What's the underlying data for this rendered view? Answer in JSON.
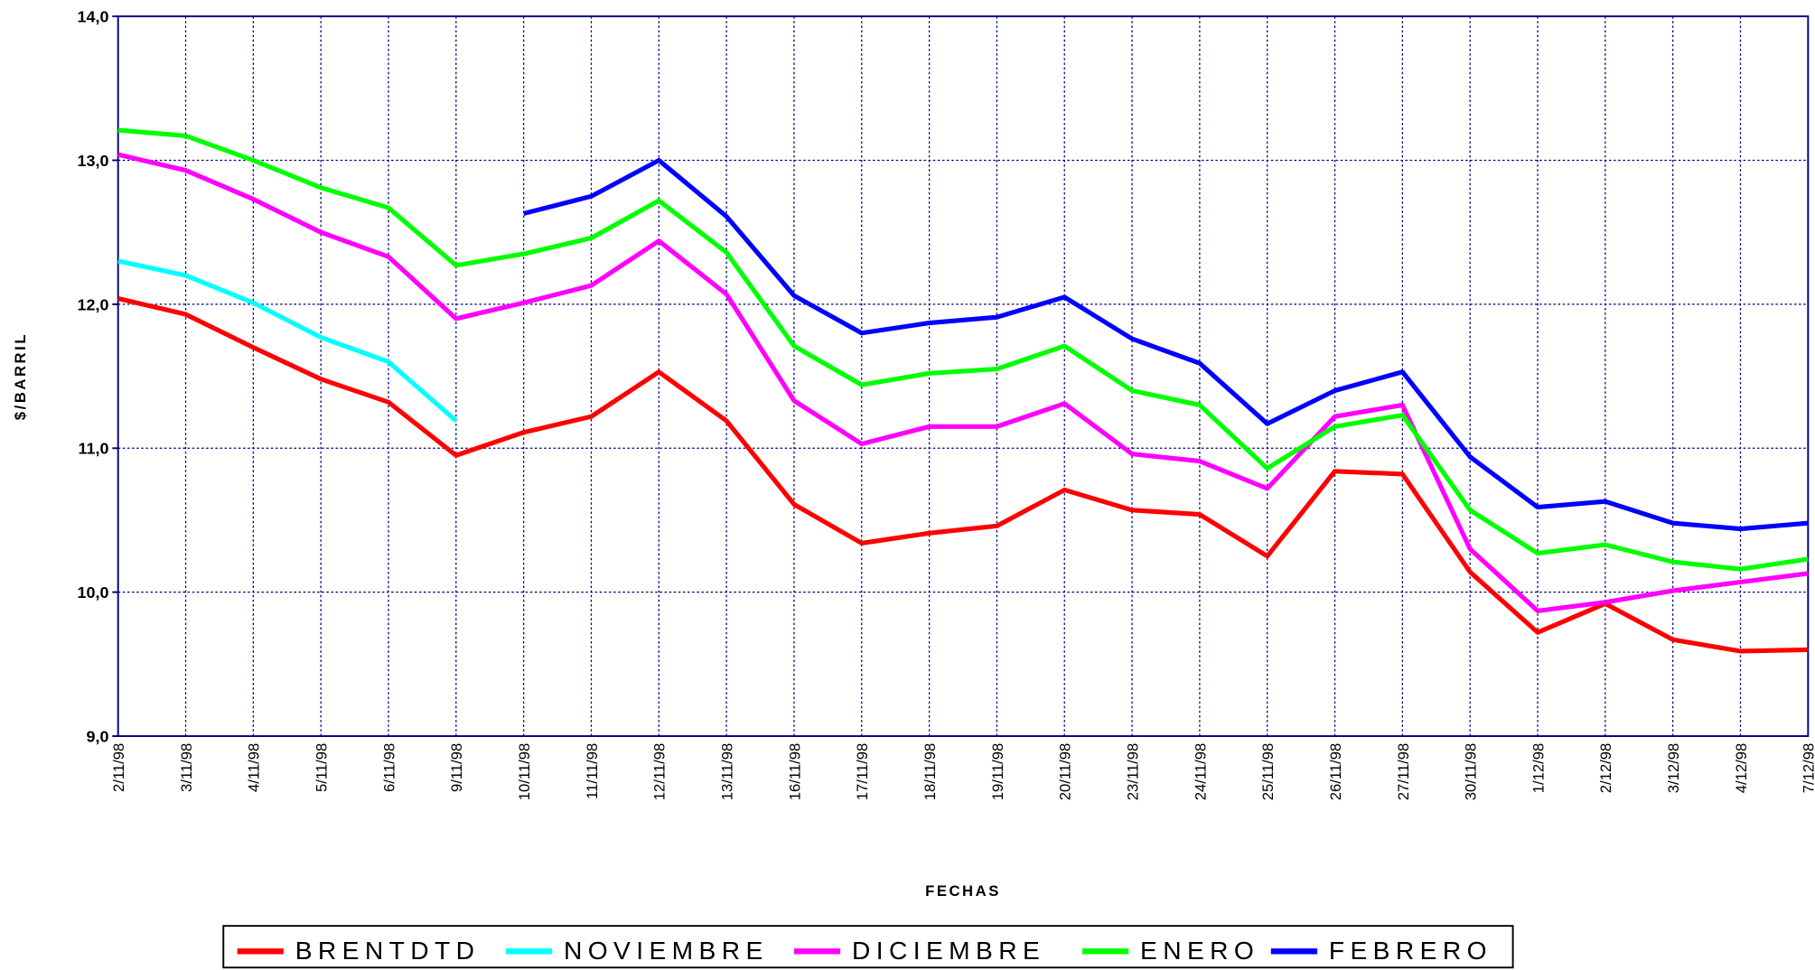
{
  "chart_data": {
    "type": "line",
    "x_label": "FECHAS",
    "y_label": "$/BARRIL",
    "categories": [
      "2/11/98",
      "3/11/98",
      "4/11/98",
      "5/11/98",
      "6/11/98",
      "9/11/98",
      "10/11/98",
      "11/11/98",
      "12/11/98",
      "13/11/98",
      "16/11/98",
      "17/11/98",
      "18/11/98",
      "19/11/98",
      "20/11/98",
      "23/11/98",
      "24/11/98",
      "25/11/98",
      "26/11/98",
      "27/11/98",
      "30/11/98",
      "1/12/98",
      "2/12/98",
      "3/12/98",
      "4/12/98",
      "7/12/98"
    ],
    "ylim": [
      9,
      14
    ],
    "yticks": [
      {
        "value": 9,
        "label": "9,0"
      },
      {
        "value": 10,
        "label": "10,0"
      },
      {
        "value": 11,
        "label": "11,0"
      },
      {
        "value": 12,
        "label": "12,0"
      },
      {
        "value": 13,
        "label": "13,0"
      },
      {
        "value": 14,
        "label": "14,0"
      }
    ],
    "grid": true,
    "legend": "bottom",
    "series": [
      {
        "name": "BRENTDTD",
        "color": "#ff0000",
        "values": [
          12.04,
          11.93,
          11.7,
          11.48,
          11.32,
          10.95,
          11.11,
          11.22,
          11.53,
          11.19,
          10.61,
          10.34,
          10.41,
          10.46,
          10.71,
          10.57,
          10.54,
          10.25,
          10.84,
          10.82,
          10.14,
          9.72,
          9.92,
          9.67,
          9.59,
          9.6
        ]
      },
      {
        "name": "NOVIEMBRE",
        "color": "#00ffff",
        "values": [
          12.3,
          12.2,
          12.01,
          11.77,
          11.6,
          11.19,
          null,
          null,
          null,
          null,
          null,
          null,
          null,
          null,
          null,
          null,
          null,
          null,
          null,
          null,
          null,
          null,
          null,
          null,
          null,
          null
        ]
      },
      {
        "name": "DICIEMBRE",
        "color": "#ff00ff",
        "values": [
          13.04,
          12.93,
          12.73,
          12.5,
          12.33,
          11.9,
          12.01,
          12.13,
          12.44,
          12.07,
          11.33,
          11.03,
          11.15,
          11.15,
          11.31,
          10.96,
          10.91,
          10.72,
          11.22,
          11.3,
          10.3,
          9.87,
          9.93,
          10.01,
          10.07,
          10.13
        ]
      },
      {
        "name": "ENERO",
        "color": "#00ff00",
        "values": [
          13.21,
          13.17,
          13.0,
          12.81,
          12.67,
          12.27,
          12.35,
          12.46,
          12.72,
          12.36,
          11.71,
          11.44,
          11.52,
          11.55,
          11.71,
          11.4,
          11.3,
          10.86,
          11.15,
          11.23,
          10.57,
          10.27,
          10.33,
          10.21,
          10.16,
          10.23
        ]
      },
      {
        "name": "FEBRERO",
        "color": "#0000ff",
        "values": [
          null,
          null,
          null,
          null,
          null,
          null,
          12.63,
          12.75,
          13.0,
          12.61,
          12.06,
          11.8,
          11.87,
          11.91,
          12.05,
          11.76,
          11.59,
          11.17,
          11.4,
          11.53,
          10.94,
          10.59,
          10.63,
          10.48,
          10.44,
          10.48
        ]
      }
    ]
  }
}
